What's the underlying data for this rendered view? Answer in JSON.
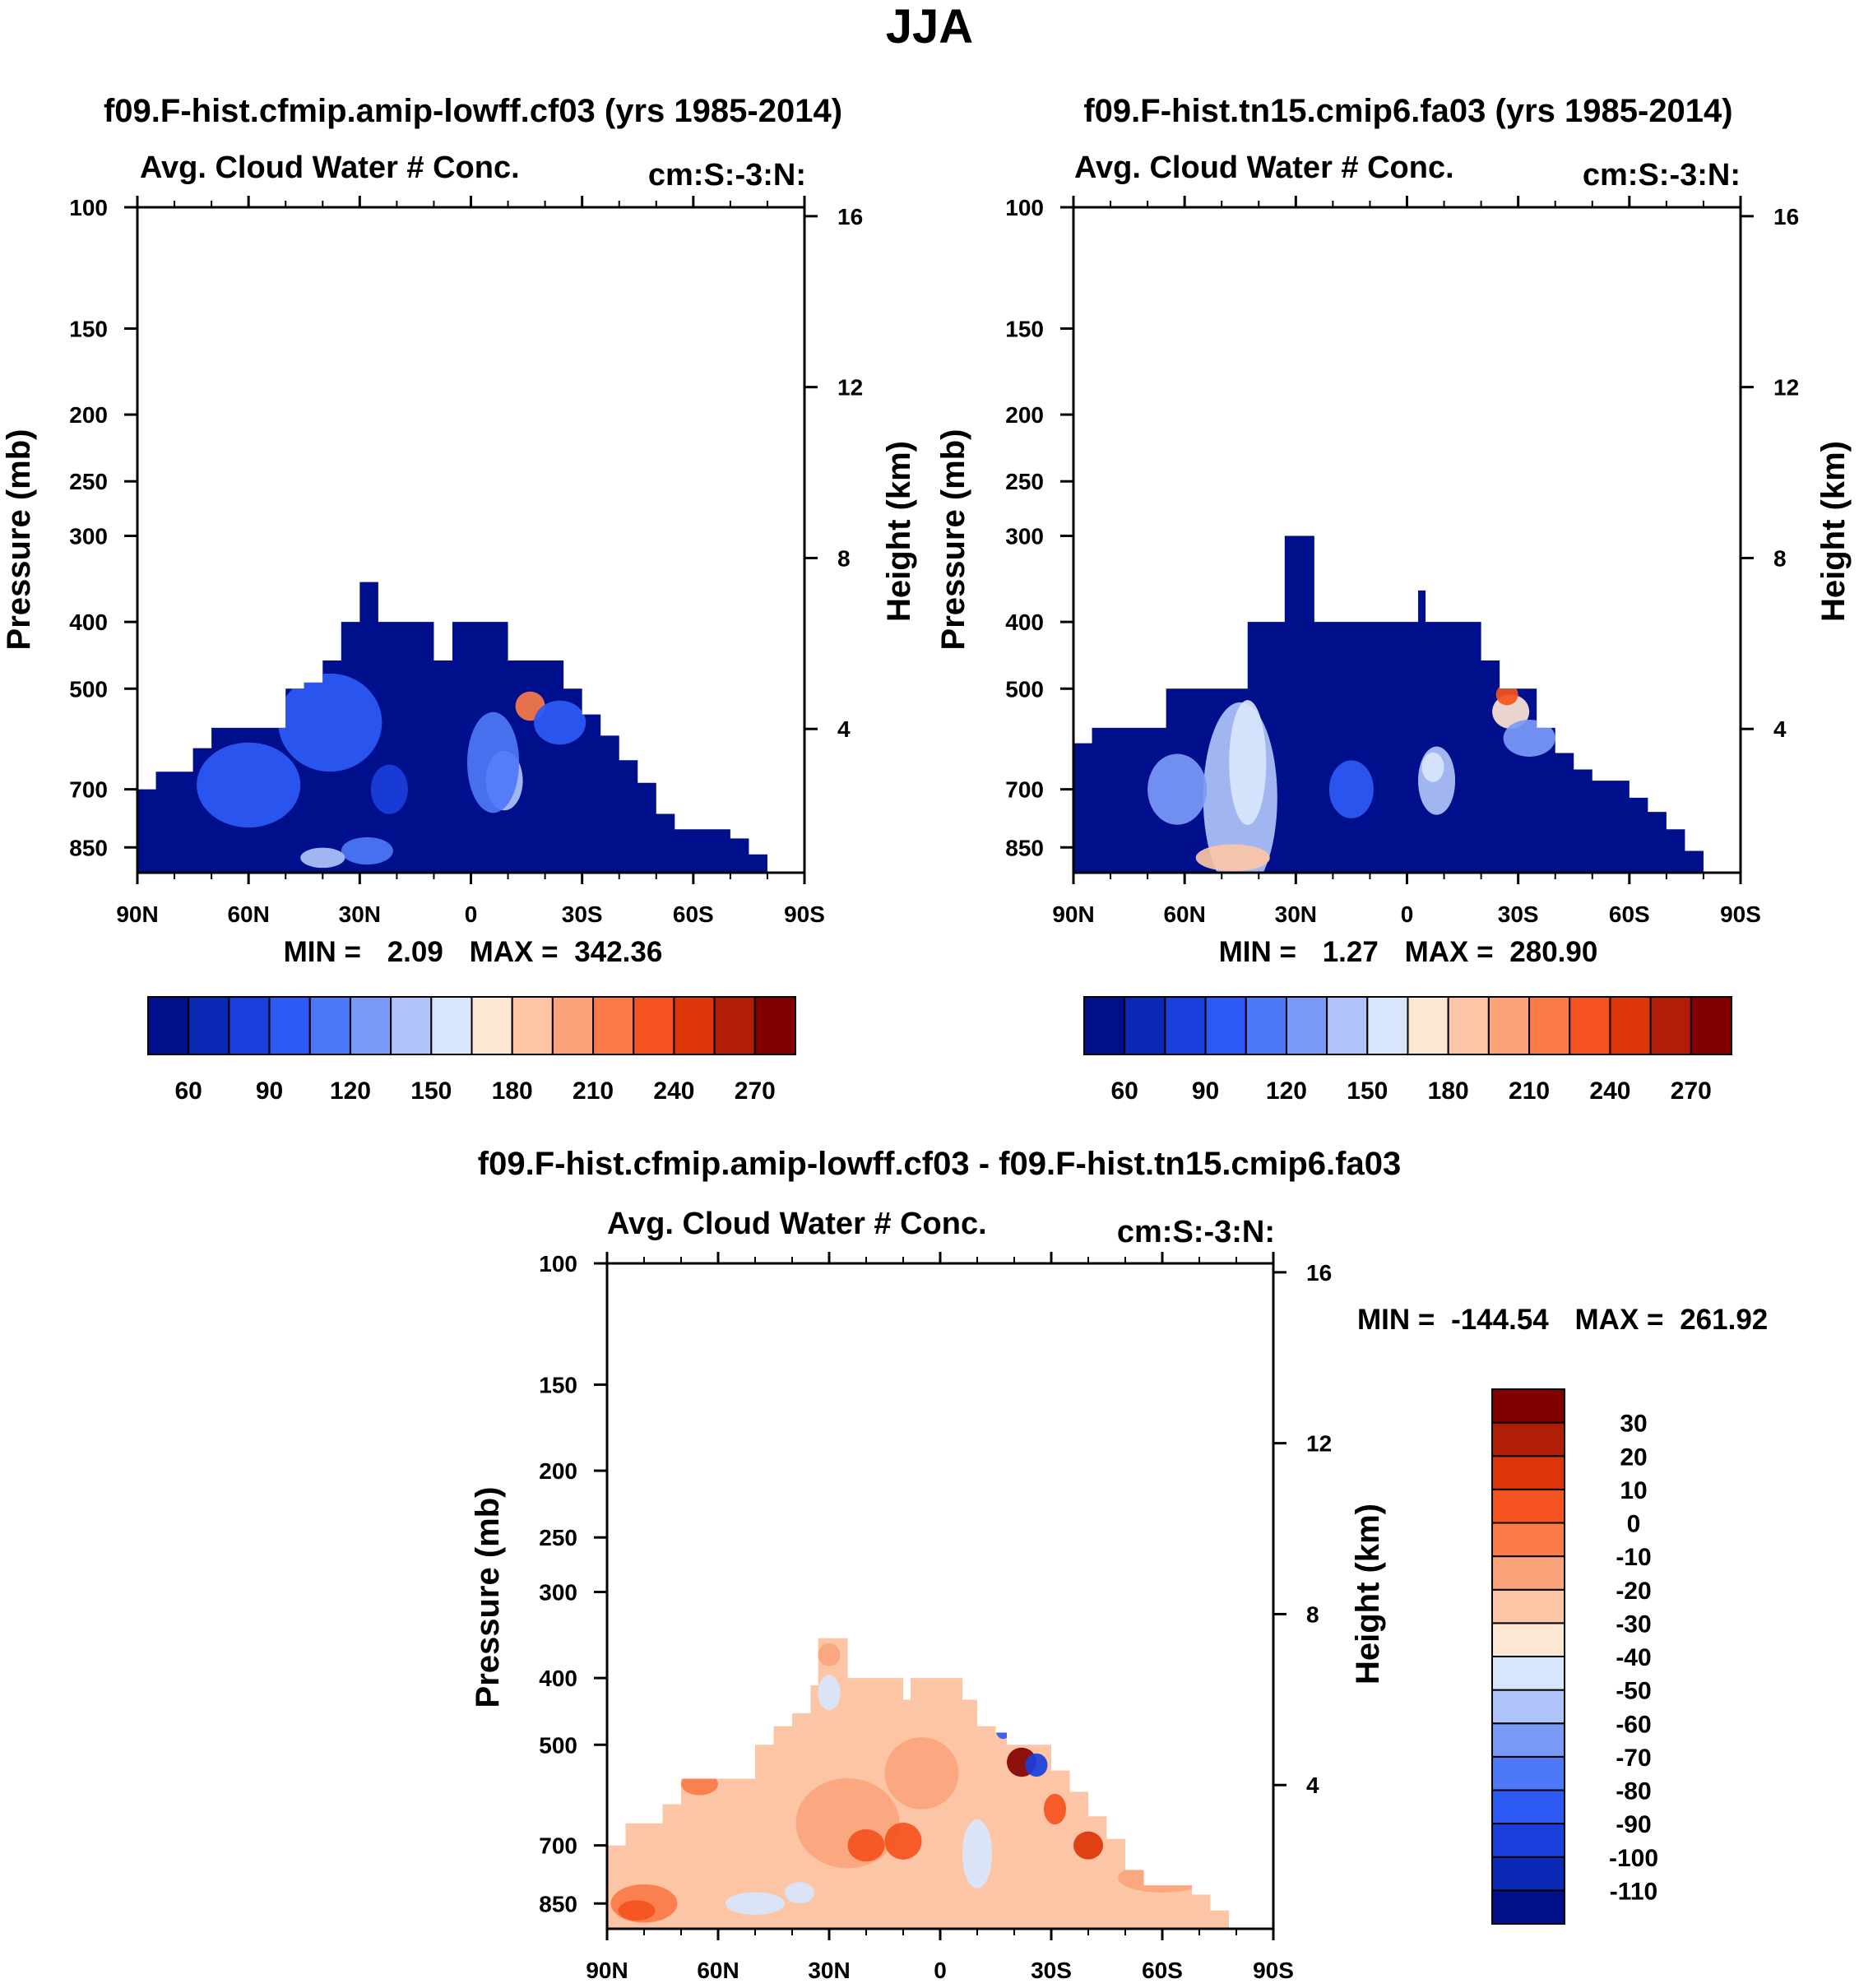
{
  "figure": {
    "title": "JJA"
  },
  "chart_data": [
    {
      "type": "heatmap",
      "panel_title": "f09.F-hist.cfmip.amip-lowff.cf03 (yrs 1985-2014)",
      "title": "Avg. Cloud Water # Conc.",
      "units": "cm:S:-3:N:",
      "xlabel": "",
      "ylabel": "Pressure (mb)",
      "y2label": "Height (km)",
      "x_ticks": [
        "90N",
        "60N",
        "30N",
        "0",
        "30S",
        "60S",
        "90S"
      ],
      "xlim": [
        90,
        -90
      ],
      "y_ticks": [
        100,
        150,
        200,
        250,
        300,
        400,
        500,
        700,
        850
      ],
      "ylim": [
        100,
        925
      ],
      "y2_ticks": [
        16,
        12,
        8,
        4
      ],
      "stats": {
        "min_label": "MIN =",
        "min": "2.09",
        "max_label": "MAX =",
        "max": "342.36"
      },
      "colorbar": {
        "orientation": "horizontal",
        "levels": [
          45,
          60,
          75,
          90,
          105,
          120,
          135,
          150,
          165,
          180,
          195,
          210,
          225,
          240,
          255,
          270
        ],
        "labels": [
          "60",
          "90",
          "120",
          "150",
          "180",
          "210",
          "240",
          "270"
        ],
        "colors": [
          "#000f8c",
          "#0a2ab5",
          "#1a3fdc",
          "#2d5af5",
          "#4d78f7",
          "#7a9af8",
          "#afc4fa",
          "#d8e6fd",
          "#fde6d2",
          "#fcc6a6",
          "#fba47c",
          "#fa7a48",
          "#f4521e",
          "#dc3509",
          "#b01e08",
          "#820000"
        ]
      },
      "profile": [
        [
          90,
          700
        ],
        [
          85,
          660
        ],
        [
          80,
          660
        ],
        [
          75,
          610
        ],
        [
          70,
          570
        ],
        [
          65,
          570
        ],
        [
          55,
          570
        ],
        [
          50,
          500
        ],
        [
          45,
          490
        ],
        [
          40,
          455
        ],
        [
          35,
          400
        ],
        [
          30,
          350
        ],
        [
          25,
          400
        ],
        [
          15,
          400
        ],
        [
          10,
          455
        ],
        [
          5,
          400
        ],
        [
          -5,
          400
        ],
        [
          -10,
          455
        ],
        [
          -15,
          455
        ],
        [
          -20,
          455
        ],
        [
          -25,
          500
        ],
        [
          -30,
          545
        ],
        [
          -35,
          585
        ],
        [
          -40,
          635
        ],
        [
          -45,
          685
        ],
        [
          -50,
          760
        ],
        [
          -55,
          800
        ],
        [
          -60,
          800
        ],
        [
          -65,
          800
        ],
        [
          -70,
          825
        ],
        [
          -75,
          870
        ]
      ],
      "anomalies": [
        {
          "lat": 0,
          "p": 620,
          "rlat": 13,
          "rp": 120,
          "c": 0
        },
        {
          "lat": 38,
          "p": 560,
          "rlat": 14,
          "rp": 170,
          "c": 3
        },
        {
          "lat": 60,
          "p": 690,
          "rlat": 14,
          "rp": 180,
          "c": 3
        },
        {
          "lat": -9,
          "p": 680,
          "rlat": 5,
          "rp": 120,
          "c": 6
        },
        {
          "lat": -6,
          "p": 640,
          "rlat": 7,
          "rp": 200,
          "c": 4
        },
        {
          "lat": -16,
          "p": 530,
          "rlat": 4,
          "rp": 40,
          "c": 11
        },
        {
          "lat": 28,
          "p": 860,
          "rlat": 7,
          "rp": 60,
          "c": 4
        },
        {
          "lat": 22,
          "p": 700,
          "rlat": 5,
          "rp": 100,
          "c": 2
        },
        {
          "lat": -24,
          "p": 560,
          "rlat": 7,
          "rp": 70,
          "c": 3
        },
        {
          "lat": 40,
          "p": 880,
          "rlat": 6,
          "rp": 40,
          "c": 6
        }
      ]
    },
    {
      "type": "heatmap",
      "panel_title": "f09.F-hist.tn15.cmip6.fa03 (yrs 1985-2014)",
      "title": "Avg. Cloud Water # Conc.",
      "units": "cm:S:-3:N:",
      "xlabel": "",
      "ylabel": "Pressure (mb)",
      "y2label": "Height (km)",
      "x_ticks": [
        "90N",
        "60N",
        "30N",
        "0",
        "30S",
        "60S",
        "90S"
      ],
      "xlim": [
        90,
        -90
      ],
      "y_ticks": [
        100,
        150,
        200,
        250,
        300,
        400,
        500,
        700,
        850
      ],
      "ylim": [
        100,
        925
      ],
      "y2_ticks": [
        16,
        12,
        8,
        4
      ],
      "stats": {
        "min_label": "MIN =",
        "min": "1.27",
        "max_label": "MAX =",
        "max": "280.90"
      },
      "colorbar": {
        "orientation": "horizontal",
        "levels": [
          45,
          60,
          75,
          90,
          105,
          120,
          135,
          150,
          165,
          180,
          195,
          210,
          225,
          240,
          255,
          270
        ],
        "labels": [
          "60",
          "90",
          "120",
          "150",
          "180",
          "210",
          "240",
          "270"
        ],
        "colors": [
          "#000f8c",
          "#0a2ab5",
          "#1a3fdc",
          "#2d5af5",
          "#4d78f7",
          "#7a9af8",
          "#afc4fa",
          "#d8e6fd",
          "#fde6d2",
          "#fcc6a6",
          "#fba47c",
          "#fa7a48",
          "#f4521e",
          "#dc3509",
          "#b01e08",
          "#820000"
        ]
      },
      "profile": [
        [
          90,
          600
        ],
        [
          85,
          570
        ],
        [
          70,
          570
        ],
        [
          65,
          500
        ],
        [
          58,
          500
        ],
        [
          50,
          500
        ],
        [
          45,
          500
        ],
        [
          43,
          400
        ],
        [
          35,
          400
        ],
        [
          33,
          300
        ],
        [
          28,
          300
        ],
        [
          25,
          400
        ],
        [
          5,
          400
        ],
        [
          -3,
          360
        ],
        [
          -5,
          400
        ],
        [
          -15,
          400
        ],
        [
          -20,
          455
        ],
        [
          -25,
          500
        ],
        [
          -30,
          500
        ],
        [
          -35,
          570
        ],
        [
          -40,
          620
        ],
        [
          -45,
          655
        ],
        [
          -50,
          680
        ],
        [
          -55,
          680
        ],
        [
          -60,
          720
        ],
        [
          -65,
          755
        ],
        [
          -70,
          800
        ],
        [
          -75,
          860
        ]
      ],
      "anomalies": [
        {
          "lat": 45,
          "p": 720,
          "rlat": 10,
          "rp": 430,
          "c": 6
        },
        {
          "lat": 43,
          "p": 640,
          "rlat": 5,
          "rp": 250,
          "c": 7
        },
        {
          "lat": 62,
          "p": 700,
          "rlat": 8,
          "rp": 150,
          "c": 5
        },
        {
          "lat": 47,
          "p": 880,
          "rlat": 10,
          "rp": 60,
          "c": 9
        },
        {
          "lat": 8,
          "p": 650,
          "rlat": 8,
          "rp": 200,
          "c": 0
        },
        {
          "lat": -8,
          "p": 680,
          "rlat": 5,
          "rp": 140,
          "c": 6
        },
        {
          "lat": -7,
          "p": 650,
          "rlat": 3,
          "rp": 50,
          "c": 7
        },
        {
          "lat": -28,
          "p": 540,
          "rlat": 5,
          "rp": 50,
          "c": 8
        },
        {
          "lat": -27,
          "p": 510,
          "rlat": 3,
          "rp": 25,
          "c": 12
        },
        {
          "lat": -33,
          "p": 590,
          "rlat": 7,
          "rp": 60,
          "c": 5
        },
        {
          "lat": 15,
          "p": 700,
          "rlat": 6,
          "rp": 120,
          "c": 3
        }
      ]
    },
    {
      "type": "heatmap",
      "panel_title": "f09.F-hist.cfmip.amip-lowff.cf03 - f09.F-hist.tn15.cmip6.fa03",
      "title": "Avg. Cloud Water # Conc.",
      "units": "cm:S:-3:N:",
      "xlabel": "",
      "ylabel": "Pressure (mb)",
      "y2label": "Height (km)",
      "x_ticks": [
        "90N",
        "60N",
        "30N",
        "0",
        "30S",
        "60S",
        "90S"
      ],
      "xlim": [
        90,
        -90
      ],
      "y_ticks": [
        100,
        150,
        200,
        250,
        300,
        400,
        500,
        700,
        850
      ],
      "ylim": [
        100,
        925
      ],
      "y2_ticks": [
        16,
        12,
        8,
        4
      ],
      "stats": {
        "min_label": "MIN =",
        "min": "-144.54",
        "max_label": "MAX =",
        "max": "261.92"
      },
      "colorbar": {
        "orientation": "vertical",
        "levels": [
          -110,
          -100,
          -90,
          -80,
          -70,
          -60,
          -50,
          -40,
          -30,
          -20,
          -10,
          0,
          10,
          20,
          30
        ],
        "labels": [
          "-110",
          "-100",
          "-90",
          "-80",
          "-70",
          "-60",
          "-50",
          "-40",
          "-30",
          "-20",
          "-10",
          "0",
          "10",
          "20",
          "30"
        ],
        "colors": [
          "#000f8c",
          "#0a2ab5",
          "#1a3fdc",
          "#2d5af5",
          "#4d78f7",
          "#7a9af8",
          "#afc4fa",
          "#d8e6fd",
          "#fde6d2",
          "#fcc6a6",
          "#fba47c",
          "#fa7a48",
          "#f4521e",
          "#dc3509",
          "#b01e08",
          "#820000"
        ]
      },
      "profile": [
        [
          90,
          700
        ],
        [
          85,
          650
        ],
        [
          80,
          650
        ],
        [
          75,
          610
        ],
        [
          70,
          560
        ],
        [
          55,
          560
        ],
        [
          50,
          500
        ],
        [
          45,
          470
        ],
        [
          40,
          450
        ],
        [
          35,
          410
        ],
        [
          33,
          350
        ],
        [
          28,
          350
        ],
        [
          25,
          400
        ],
        [
          12,
          400
        ],
        [
          10,
          430
        ],
        [
          8,
          400
        ],
        [
          -3,
          400
        ],
        [
          -6,
          430
        ],
        [
          -10,
          470
        ],
        [
          -15,
          480
        ],
        [
          -18,
          500
        ],
        [
          -25,
          500
        ],
        [
          -30,
          545
        ],
        [
          -35,
          585
        ],
        [
          -40,
          635
        ],
        [
          -45,
          685
        ],
        [
          -50,
          760
        ],
        [
          -55,
          800
        ],
        [
          -60,
          800
        ],
        [
          -65,
          800
        ],
        [
          -68,
          825
        ],
        [
          -73,
          870
        ]
      ],
      "anomalies": [
        {
          "lat": 80,
          "p": 850,
          "rlat": 9,
          "rp": 90,
          "c": 11
        },
        {
          "lat": 82,
          "p": 870,
          "rlat": 5,
          "rp": 40,
          "c": 12
        },
        {
          "lat": 65,
          "p": 570,
          "rlat": 5,
          "rp": 30,
          "c": 11
        },
        {
          "lat": 25,
          "p": 650,
          "rlat": 14,
          "rp": 180,
          "c": 10
        },
        {
          "lat": 20,
          "p": 700,
          "rlat": 5,
          "rp": 60,
          "c": 12
        },
        {
          "lat": 10,
          "p": 690,
          "rlat": 5,
          "rp": 70,
          "c": 12
        },
        {
          "lat": 5,
          "p": 550,
          "rlat": 10,
          "rp": 120,
          "c": 10
        },
        {
          "lat": 50,
          "p": 850,
          "rlat": 8,
          "rp": 45,
          "c": 7
        },
        {
          "lat": 38,
          "p": 820,
          "rlat": 4,
          "rp": 40,
          "c": 7
        },
        {
          "lat": -10,
          "p": 720,
          "rlat": 4,
          "rp": 150,
          "c": 7
        },
        {
          "lat": -22,
          "p": 530,
          "rlat": 4,
          "rp": 40,
          "c": 15
        },
        {
          "lat": -26,
          "p": 535,
          "rlat": 3,
          "rp": 30,
          "c": 2
        },
        {
          "lat": -31,
          "p": 620,
          "rlat": 3,
          "rp": 50,
          "c": 12
        },
        {
          "lat": -17,
          "p": 475,
          "rlat": 2,
          "rp": 20,
          "c": 3
        },
        {
          "lat": 30,
          "p": 420,
          "rlat": 3,
          "rp": 40,
          "c": 7
        },
        {
          "lat": 30,
          "p": 370,
          "rlat": 3,
          "rp": 20,
          "c": 10
        },
        {
          "lat": -60,
          "p": 780,
          "rlat": 12,
          "rp": 60,
          "c": 10
        },
        {
          "lat": -40,
          "p": 700,
          "rlat": 4,
          "rp": 50,
          "c": 13
        }
      ]
    }
  ]
}
